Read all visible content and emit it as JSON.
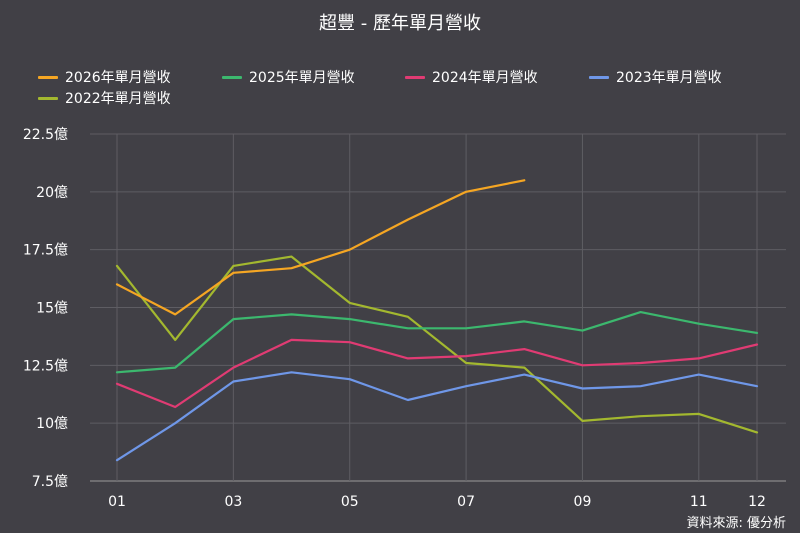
{
  "title": "超豐 - 歷年單月營收",
  "source": "資料來源: 優分析",
  "colors": {
    "background": "#414046",
    "grid": "#5e5d63",
    "axis": "#9a9a9a"
  },
  "chart_data": {
    "type": "line",
    "title": "超豐 - 歷年單月營收",
    "xlabel": "",
    "ylabel": "",
    "x": [
      "01",
      "02",
      "03",
      "04",
      "05",
      "06",
      "07",
      "08",
      "09",
      "10",
      "11",
      "12"
    ],
    "x_tick_labels": [
      "01",
      "03",
      "05",
      "07",
      "09",
      "11",
      "12"
    ],
    "x_tick_indices": [
      0,
      2,
      4,
      6,
      8,
      10,
      11
    ],
    "y_tick_values": [
      7.5,
      10,
      12.5,
      15,
      17.5,
      20,
      22.5
    ],
    "y_tick_labels": [
      "7.5億",
      "10億",
      "12.5億",
      "15億",
      "17.5億",
      "20億",
      "22.5億"
    ],
    "ylim": [
      7.5,
      22.5
    ],
    "grid": true,
    "legend_position": "top",
    "series": [
      {
        "name": "2026年單月營收",
        "color": "#f5a623",
        "values": [
          16.0,
          14.7,
          16.5,
          16.7,
          17.5,
          18.8,
          20.0,
          20.5,
          null,
          null,
          null,
          null
        ]
      },
      {
        "name": "2025年單月營收",
        "color": "#3cb86e",
        "values": [
          12.2,
          12.4,
          14.5,
          14.7,
          14.5,
          14.1,
          14.1,
          14.4,
          14.0,
          14.8,
          14.3,
          13.9
        ]
      },
      {
        "name": "2024年單月營收",
        "color": "#e03b73",
        "values": [
          11.7,
          10.7,
          12.4,
          13.6,
          13.5,
          12.8,
          12.9,
          13.2,
          12.5,
          12.6,
          12.8,
          13.4
        ]
      },
      {
        "name": "2023年單月營收",
        "color": "#6f97e8",
        "values": [
          8.4,
          10.0,
          11.8,
          12.2,
          11.9,
          11.0,
          11.6,
          12.1,
          11.5,
          11.6,
          12.1,
          11.6
        ]
      },
      {
        "name": "2022年單月營收",
        "color": "#a3b82f",
        "values": [
          16.8,
          13.6,
          16.8,
          17.2,
          15.2,
          14.6,
          12.6,
          12.4,
          10.1,
          10.3,
          10.4,
          9.6
        ]
      }
    ]
  }
}
